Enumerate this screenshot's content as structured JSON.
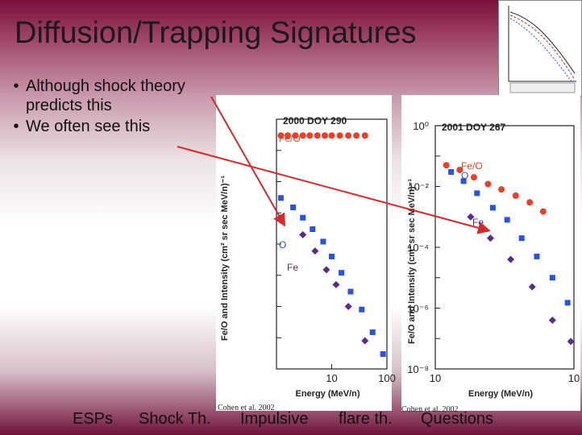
{
  "title": "Diffusion/Trapping Signatures",
  "bullets": [
    "Although shock theory predicts this",
    "We often see this"
  ],
  "nav": [
    "ESPs",
    "Shock Th.",
    "Impulsive",
    "flare th.",
    "Questions"
  ],
  "citations": [
    "Cohen et al. 2002",
    "Cohen et al. 2002"
  ],
  "colors": {
    "arrow": "#d42a2a",
    "fe_o": "#e8402a",
    "oxygen": "#2a52e0",
    "iron": "#5a2a8c"
  },
  "chart_data": [
    {
      "type": "scatter",
      "title": "2000 DOY 290",
      "ylabel": "Fe/O and Intensity (cm² sr sec MeV/n)⁻¹",
      "xlabel": "Energy (MeV/n)",
      "xscale": "log",
      "yscale": "log",
      "xlim": [
        1,
        100
      ],
      "ylim": [
        1e-08,
        1
      ],
      "x_ticks": [
        "10",
        "100"
      ],
      "series": [
        {
          "name": "Fe/O",
          "x": [
            1.2,
            1.6,
            2.2,
            3.0,
            4.0,
            5.5,
            7.5,
            10,
            14,
            20,
            28,
            40
          ],
          "y": [
            0.3,
            0.3,
            0.3,
            0.3,
            0.3,
            0.3,
            0.3,
            0.3,
            0.3,
            0.3,
            0.3,
            0.3
          ]
        },
        {
          "name": "O",
          "x": [
            1.2,
            2,
            3,
            4.5,
            7,
            10,
            15,
            22,
            35,
            55,
            85
          ],
          "y": [
            0.003,
            0.0015,
            0.0007,
            0.0003,
            0.00012,
            4e-05,
            1.2e-05,
            3e-06,
            8e-07,
            1.5e-07,
            3e-08
          ]
        },
        {
          "name": "Fe",
          "x": [
            3,
            5,
            8,
            12,
            20,
            40
          ],
          "y": [
            0.0002,
            6e-05,
            1.5e-05,
            5e-06,
            1e-06,
            8e-08
          ]
        }
      ]
    },
    {
      "type": "scatter",
      "title": "2001 DOY 267",
      "ylabel": "Fe/O and Intensity (cm² sr sec MeV/n)⁻¹",
      "xlabel": "Energy (MeV/n)",
      "xscale": "log",
      "yscale": "log",
      "xlim": [
        1,
        10
      ],
      "ylim": [
        1e-08,
        1
      ],
      "y_ticks": [
        "10⁰",
        "10⁻²",
        "10⁻⁴",
        "10⁻⁶",
        "10⁻⁸"
      ],
      "x_ticks": [
        "10",
        "10"
      ],
      "series": [
        {
          "name": "Fe/O",
          "x": [
            1.2,
            1.5,
            1.9,
            2.4,
            3.0,
            3.8,
            4.8,
            6.0
          ],
          "y": [
            0.05,
            0.035,
            0.02,
            0.012,
            0.008,
            0.005,
            0.003,
            0.0015
          ]
        },
        {
          "name": "O",
          "x": [
            1.3,
            1.6,
            2.0,
            2.6,
            3.3,
            4.2,
            5.4,
            7.0,
            9.0
          ],
          "y": [
            0.03,
            0.015,
            0.006,
            0.002,
            0.0008,
            0.0002,
            5e-05,
            1e-05,
            1.5e-06
          ]
        },
        {
          "name": "Fe",
          "x": [
            1.8,
            2.5,
            3.5,
            5,
            7,
            9.5
          ],
          "y": [
            0.001,
            0.0002,
            4e-05,
            5e-06,
            4e-07,
            8e-08
          ]
        }
      ]
    }
  ]
}
